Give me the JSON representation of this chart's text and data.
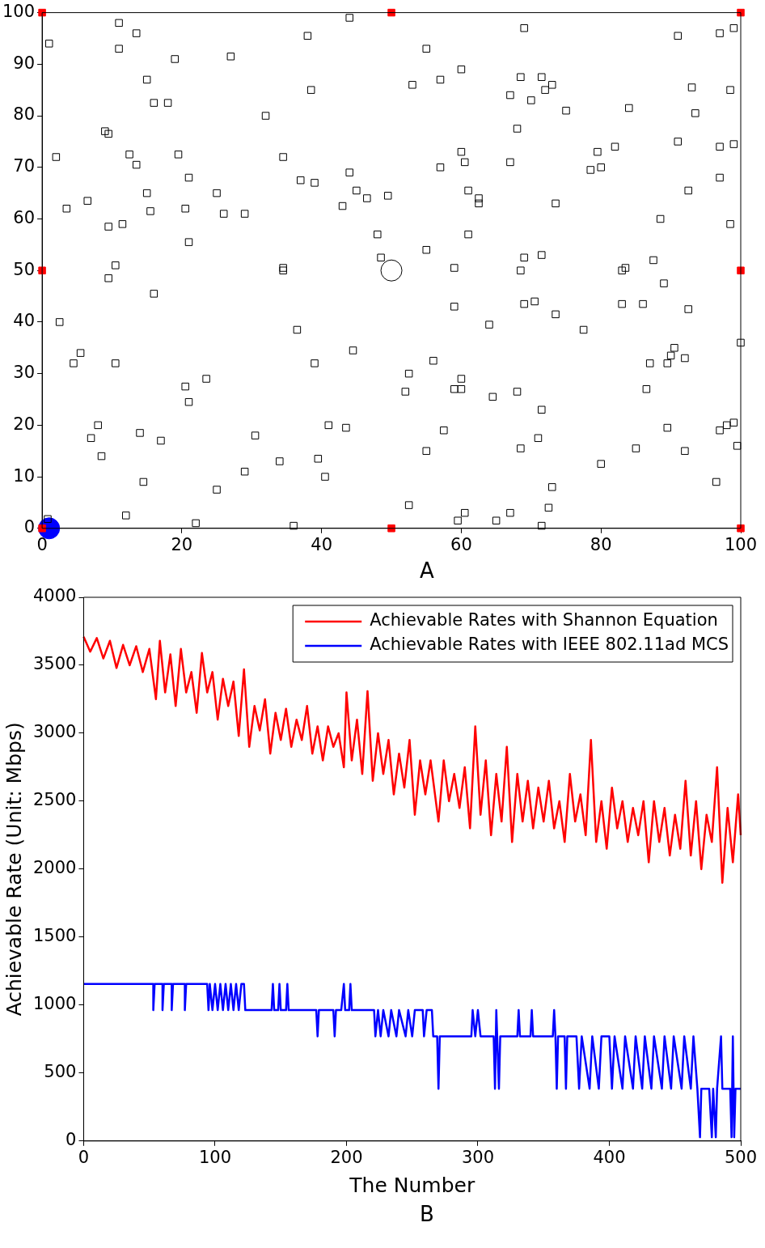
{
  "chart_data": [
    {
      "type": "scatter",
      "xlim": [
        0,
        100
      ],
      "ylim": [
        0,
        100
      ],
      "xticks": [
        0,
        20,
        40,
        60,
        80,
        100
      ],
      "yticks": [
        0,
        10,
        20,
        30,
        40,
        50,
        60,
        70,
        80,
        90,
        100
      ],
      "grid": false,
      "legend": false,
      "marker": "square",
      "annotations": [
        "A"
      ],
      "series": [
        {
          "color": "#000000",
          "x": [
            1,
            2,
            0.8,
            11,
            11,
            13.5,
            15,
            16,
            18,
            19,
            27,
            32,
            38,
            38.5,
            44,
            55,
            53,
            57,
            60,
            69,
            68.5,
            71.5,
            70,
            72,
            73,
            67,
            75,
            84,
            91,
            93,
            93.5,
            97,
            99,
            98.5,
            9,
            9.5,
            12.5,
            13.5,
            19.5,
            21,
            15,
            15.5,
            20.5,
            25,
            26,
            29,
            3.5,
            6.5,
            9.5,
            11.5,
            10.5,
            9.5,
            16,
            21,
            34.5,
            37,
            39,
            44,
            45,
            46.5,
            49.5,
            43,
            48,
            48.5,
            34.5,
            34.5,
            55,
            57,
            60,
            60.5,
            61,
            62.5,
            62.5,
            61,
            59,
            67,
            68,
            69,
            68.5,
            71.5,
            69,
            70.5,
            73.5,
            73.5,
            78.5,
            79.5,
            80,
            82,
            83,
            83.5,
            83,
            86,
            87.5,
            88.5,
            89,
            91,
            92.5,
            92.5,
            97,
            97,
            98.5,
            99,
            59,
            64,
            77.5,
            2.5,
            4.5,
            5.5,
            10.5,
            36.5,
            39,
            44.5,
            56,
            52.5,
            52,
            60,
            59,
            60,
            64.5,
            68,
            71.5,
            86.5,
            87,
            89.5,
            90,
            90.5,
            92,
            100,
            20.5,
            21,
            23.5,
            8,
            7,
            8.5,
            14,
            17,
            30.5,
            41,
            43.5,
            34,
            39.5,
            40.5,
            29,
            25,
            14.5,
            12,
            22,
            36,
            52.5,
            57.5,
            55,
            68.5,
            71,
            80,
            85,
            89.5,
            92,
            97,
            98,
            99,
            99.5,
            96.5,
            73,
            72.5,
            71.5,
            67,
            65,
            60.5,
            59.5
          ],
          "values": [
            94,
            72,
            1.8,
            98,
            93,
            96,
            87,
            82.5,
            82.5,
            91,
            91.5,
            80,
            95.5,
            85,
            99,
            93,
            86,
            87,
            89,
            97,
            87.5,
            87.5,
            83,
            85,
            86,
            84,
            81,
            81.5,
            95.5,
            85.5,
            80.5,
            96,
            97,
            85,
            77,
            76.5,
            72.5,
            70.5,
            72.5,
            68,
            65,
            61.5,
            62,
            65,
            61,
            61,
            62,
            63.5,
            58.5,
            59,
            51,
            48.5,
            45.5,
            55.5,
            72,
            67.5,
            67,
            69,
            65.5,
            64,
            64.5,
            62.5,
            57,
            52.5,
            50.5,
            50,
            54,
            70,
            73,
            71,
            65.5,
            64,
            63,
            57,
            50.5,
            71,
            77.5,
            52.5,
            50,
            53,
            43.5,
            44,
            63,
            41.5,
            69.5,
            73,
            70,
            74,
            50,
            50.5,
            43.5,
            43.5,
            52,
            60,
            47.5,
            75,
            65.5,
            42.5,
            74,
            68,
            59,
            74.5,
            43,
            39.5,
            38.5,
            40,
            32,
            34,
            32,
            38.5,
            32,
            34.5,
            32.5,
            30,
            26.5,
            29,
            27,
            27,
            25.5,
            26.5,
            23,
            27,
            32,
            32,
            33.5,
            35,
            33,
            36,
            27.5,
            24.5,
            29,
            20,
            17.5,
            14,
            18.5,
            17,
            18,
            20,
            19.5,
            13,
            13.5,
            10,
            11,
            7.5,
            9,
            2.5,
            1,
            0.5,
            4.5,
            19,
            15,
            15.5,
            17.5,
            12.5,
            15.5,
            19.5,
            15,
            19,
            20,
            20.5,
            16,
            9,
            8,
            4,
            0.5,
            3,
            1.5,
            3,
            1.5
          ]
        },
        {
          "color": "#ff0000",
          "x": [
            0,
            50,
            100,
            0,
            100,
            0,
            50,
            100
          ],
          "values": [
            100,
            100,
            100,
            50,
            50,
            0,
            0,
            0
          ]
        },
        {
          "color": "#000000",
          "marker": "circle",
          "x": [
            50
          ],
          "values": [
            50
          ]
        },
        {
          "color": "#0000ff",
          "marker": "circle",
          "x": [
            1
          ],
          "values": [
            0
          ]
        }
      ]
    },
    {
      "type": "line",
      "xlabel": "The Number",
      "ylabel": "Achievable Rate (Unit: Mbps)",
      "xlim": [
        0,
        500
      ],
      "ylim": [
        0,
        4000
      ],
      "xticks": [
        0,
        100,
        200,
        300,
        400,
        500
      ],
      "yticks": [
        0,
        500,
        1000,
        1500,
        2000,
        2500,
        3000,
        3500,
        4000
      ],
      "grid": false,
      "legend": "top right",
      "marker": "none",
      "annotations": [
        "B"
      ],
      "series": [
        {
          "name": "Achievable Rates with Shannon Equation",
          "color": "#ff0000",
          "x": [
            0,
            5,
            10,
            15,
            20,
            25,
            30,
            35,
            40,
            45,
            50,
            55,
            58,
            62,
            66,
            70,
            74,
            78,
            82,
            86,
            90,
            94,
            98,
            102,
            106,
            110,
            114,
            118,
            122,
            126,
            130,
            134,
            138,
            142,
            146,
            150,
            154,
            158,
            162,
            166,
            170,
            174,
            178,
            182,
            186,
            190,
            194,
            198,
            200,
            204,
            208,
            212,
            216,
            220,
            224,
            228,
            232,
            236,
            240,
            244,
            248,
            252,
            256,
            260,
            264,
            268,
            270,
            274,
            278,
            282,
            286,
            290,
            294,
            298,
            302,
            306,
            310,
            314,
            318,
            322,
            326,
            330,
            334,
            338,
            342,
            346,
            350,
            354,
            358,
            362,
            366,
            370,
            374,
            378,
            382,
            386,
            390,
            394,
            398,
            402,
            406,
            410,
            414,
            418,
            422,
            426,
            430,
            434,
            438,
            442,
            446,
            450,
            454,
            458,
            462,
            466,
            470,
            474,
            478,
            482,
            486,
            490,
            494,
            498,
            500
          ],
          "values": [
            3710,
            3600,
            3700,
            3550,
            3680,
            3480,
            3650,
            3500,
            3640,
            3450,
            3620,
            3250,
            3680,
            3300,
            3580,
            3200,
            3620,
            3300,
            3450,
            3150,
            3590,
            3300,
            3450,
            3100,
            3400,
            3200,
            3380,
            2980,
            3470,
            2900,
            3200,
            3020,
            3250,
            2850,
            3150,
            2950,
            3180,
            2900,
            3100,
            2950,
            3200,
            2850,
            3050,
            2800,
            3050,
            2900,
            3000,
            2750,
            3300,
            2800,
            3100,
            2700,
            3310,
            2650,
            3000,
            2700,
            2950,
            2550,
            2850,
            2600,
            2950,
            2400,
            2800,
            2550,
            2800,
            2500,
            2350,
            2800,
            2500,
            2700,
            2450,
            2750,
            2300,
            3050,
            2400,
            2800,
            2250,
            2700,
            2350,
            2900,
            2200,
            2700,
            2350,
            2650,
            2300,
            2600,
            2350,
            2650,
            2300,
            2500,
            2200,
            2700,
            2350,
            2550,
            2250,
            2950,
            2200,
            2500,
            2150,
            2600,
            2300,
            2500,
            2200,
            2450,
            2250,
            2500,
            2050,
            2500,
            2200,
            2450,
            2100,
            2400,
            2150,
            2650,
            2100,
            2500,
            2000,
            2400,
            2200,
            2750,
            1900,
            2450,
            2050,
            2550,
            2250
          ]
        },
        {
          "name": "Achievable Rates with IEEE 802.11ad MCS",
          "color": "#0000ff",
          "x": [
            0,
            53,
            53,
            54,
            60,
            60,
            61,
            67,
            67,
            68,
            77,
            77,
            78,
            94,
            95,
            96,
            98,
            100,
            102,
            104,
            106,
            108,
            110,
            112,
            114,
            116,
            118,
            120,
            122,
            123,
            143,
            144,
            145,
            148,
            149,
            150,
            154,
            155,
            156,
            177,
            178,
            179,
            190,
            191,
            192,
            196,
            198,
            199,
            202,
            203,
            204,
            221,
            222,
            224,
            226,
            228,
            232,
            234,
            238,
            240,
            245,
            247,
            250,
            252,
            258,
            259,
            261,
            265,
            266,
            269,
            270,
            271,
            295,
            296,
            298,
            300,
            302,
            312,
            313,
            314,
            316,
            317,
            330,
            331,
            332,
            340,
            341,
            342,
            357,
            358,
            359,
            360,
            361,
            366,
            367,
            368,
            375,
            377,
            379,
            385,
            387,
            392,
            394,
            400,
            402,
            404,
            410,
            412,
            418,
            420,
            425,
            427,
            432,
            434,
            440,
            442,
            447,
            449,
            455,
            457,
            462,
            464,
            467,
            469,
            470,
            476,
            478,
            479,
            481,
            482,
            485,
            486,
            492,
            493,
            494,
            495,
            496,
            500
          ],
          "values": [
            1155,
            1155,
            963,
            1155,
            1155,
            963,
            1155,
            1155,
            963,
            1155,
            1155,
            963,
            1155,
            1155,
            963,
            1155,
            963,
            1155,
            963,
            1155,
            963,
            1155,
            963,
            1155,
            963,
            1155,
            963,
            1155,
            1155,
            963,
            963,
            1155,
            963,
            963,
            1155,
            963,
            963,
            1155,
            963,
            963,
            770,
            963,
            963,
            770,
            963,
            963,
            1155,
            963,
            963,
            1155,
            963,
            963,
            770,
            963,
            770,
            963,
            770,
            963,
            770,
            963,
            770,
            963,
            770,
            963,
            963,
            770,
            963,
            963,
            770,
            770,
            385,
            770,
            770,
            963,
            770,
            963,
            770,
            770,
            385,
            963,
            385,
            770,
            770,
            963,
            770,
            770,
            963,
            770,
            770,
            963,
            770,
            385,
            770,
            770,
            385,
            770,
            770,
            385,
            770,
            385,
            770,
            385,
            770,
            770,
            385,
            770,
            385,
            770,
            385,
            770,
            385,
            770,
            385,
            770,
            385,
            770,
            385,
            770,
            385,
            770,
            385,
            770,
            385,
            28,
            385,
            385,
            28,
            385,
            28,
            385,
            770,
            385,
            385,
            28,
            770,
            28,
            385,
            385
          ]
        }
      ]
    }
  ]
}
